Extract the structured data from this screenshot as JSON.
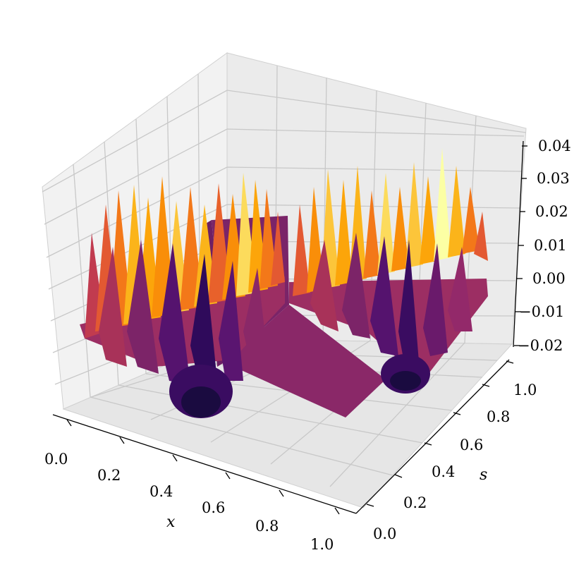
{
  "chart_data": {
    "type": "surface3d",
    "title": "",
    "colormap": "inferno",
    "xlabel": "x",
    "ylabel": "s",
    "zlabel": "",
    "xlim": [
      0.0,
      1.0
    ],
    "ylim": [
      0.0,
      1.0
    ],
    "zlim": [
      -0.02,
      0.04
    ],
    "x_ticks": [
      "0.0",
      "0.2",
      "0.4",
      "0.6",
      "0.8",
      "1.0"
    ],
    "y_ticks": [
      "0.0",
      "0.2",
      "0.4",
      "0.6",
      "0.8",
      "1.0"
    ],
    "z_ticks": [
      "−0.02",
      "−0.01",
      "0.00",
      "0.01",
      "0.02",
      "0.03",
      "0.04"
    ],
    "grid": true,
    "surface": {
      "description_values": {
        "flat_plateau_z": 0.0,
        "spike_peak_z": 0.04,
        "well_min_z": -0.02
      },
      "features": [
        {
          "region": "x from 0.0 to 0.5, s from 0.0 to 0.5",
          "kind": "oscillating ridges and well",
          "min_z": -0.02,
          "max_z": 0.035
        },
        {
          "region": "x from 0.5 to 1.0, s from 0.5 to 1.0",
          "kind": "oscillating ridges and well",
          "min_z": -0.02,
          "max_z": 0.04
        },
        {
          "region": "x from 0.5 to 1.0, s from 0.0 to 0.5",
          "kind": "flat",
          "min_z": 0.0,
          "max_z": 0.0
        },
        {
          "region": "x from 0.0 to 0.5, s from 0.5 to 1.0",
          "kind": "flat",
          "min_z": 0.0,
          "max_z": 0.0
        }
      ]
    }
  }
}
